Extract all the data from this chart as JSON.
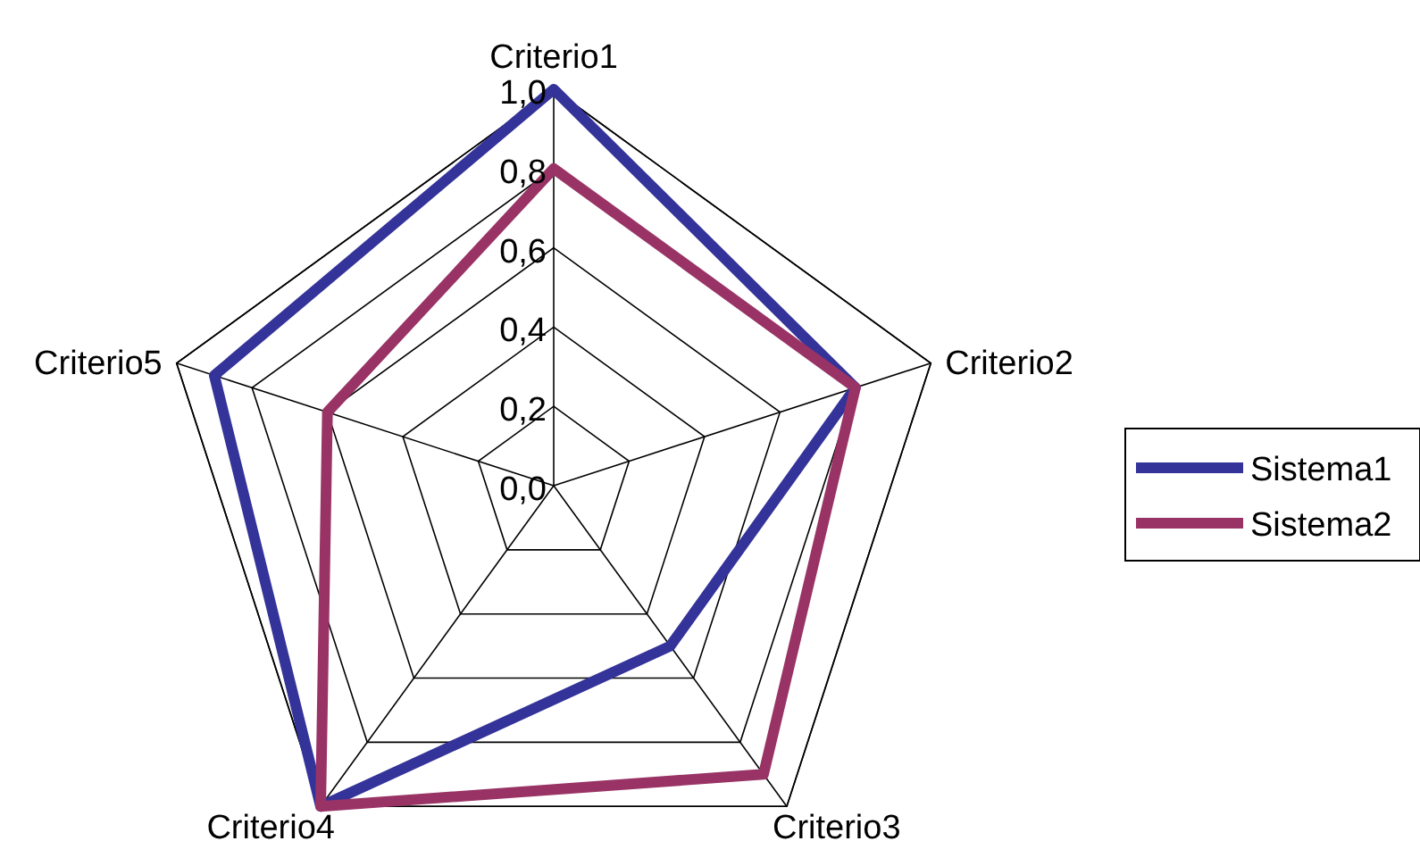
{
  "chart_data": {
    "type": "radar",
    "categories": [
      "Criterio1",
      "Criterio2",
      "Criterio3",
      "Criterio4",
      "Criterio5"
    ],
    "series": [
      {
        "name": "Sistema1",
        "color": "#333399",
        "values": [
          1.0,
          0.8,
          0.5,
          1.0,
          0.9
        ]
      },
      {
        "name": "Sistema2",
        "color": "#993366",
        "values": [
          0.8,
          0.8,
          0.9,
          1.0,
          0.6
        ]
      }
    ],
    "ylim": [
      0,
      1
    ],
    "yticks": [
      {
        "value": 0,
        "label": "0,0"
      },
      {
        "value": 0.2,
        "label": "0,2"
      },
      {
        "value": 0.4,
        "label": "0,4"
      },
      {
        "value": 0.6,
        "label": "0,6"
      },
      {
        "value": 0.8,
        "label": "0,8"
      },
      {
        "value": 1,
        "label": "1,0"
      }
    ],
    "grid": true,
    "legend": "right"
  }
}
